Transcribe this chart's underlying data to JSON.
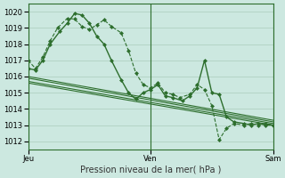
{
  "xlabel": "Pression niveau de la mer( hPa )",
  "bg_color": "#cce8e0",
  "grid_color": "#aaccbb",
  "line_color": "#2d6e2d",
  "ylim": [
    1011.5,
    1020.5
  ],
  "yticks": [
    1012,
    1013,
    1014,
    1015,
    1016,
    1017,
    1018,
    1019,
    1020
  ],
  "xtick_labels": [
    "Jeu",
    "Ven",
    "Sam"
  ],
  "xtick_positions": [
    0,
    0.5,
    1.0
  ],
  "series": [
    {
      "x": [
        0.0,
        0.03,
        0.06,
        0.09,
        0.12,
        0.16,
        0.19,
        0.22,
        0.25,
        0.28,
        0.31,
        0.34,
        0.38,
        0.41,
        0.44,
        0.47,
        0.5,
        0.53,
        0.56,
        0.59,
        0.62,
        0.66,
        0.69,
        0.72,
        0.75,
        0.78,
        0.81,
        0.84,
        0.88,
        0.91,
        0.94,
        0.97,
        1.0
      ],
      "y": [
        1017.0,
        1016.5,
        1017.2,
        1018.2,
        1019.0,
        1019.6,
        1019.55,
        1019.1,
        1018.9,
        1019.2,
        1019.5,
        1019.1,
        1018.7,
        1017.6,
        1016.2,
        1015.5,
        1015.3,
        1015.6,
        1015.0,
        1014.9,
        1014.7,
        1014.9,
        1015.5,
        1015.2,
        1014.2,
        1012.1,
        1012.8,
        1013.1,
        1013.0,
        1013.1,
        1013.0,
        1013.1,
        1013.0
      ],
      "style": "dotted_marker",
      "linewidth": 0.8,
      "markersize": 2.5
    },
    {
      "x": [
        0.0,
        0.03,
        0.06,
        0.09,
        0.13,
        0.16,
        0.19,
        0.22,
        0.25,
        0.28,
        0.31,
        0.34,
        0.38,
        0.41,
        0.44,
        0.47,
        0.5,
        0.53,
        0.56,
        0.59,
        0.63,
        0.66,
        0.69,
        0.72,
        0.75,
        0.78,
        0.81,
        0.84,
        0.88,
        0.91,
        0.94,
        0.97,
        1.0
      ],
      "y": [
        1016.5,
        1016.4,
        1017.0,
        1018.0,
        1018.8,
        1019.3,
        1019.9,
        1019.8,
        1019.3,
        1018.5,
        1018.0,
        1017.0,
        1015.8,
        1015.0,
        1014.6,
        1015.0,
        1015.2,
        1015.5,
        1014.8,
        1014.7,
        1014.5,
        1014.8,
        1015.3,
        1017.0,
        1015.0,
        1014.9,
        1013.5,
        1013.2,
        1013.1,
        1013.0,
        1013.1,
        1013.0,
        1013.0
      ],
      "style": "solid_marker",
      "linewidth": 1.0,
      "markersize": 2.5
    },
    {
      "x": [
        0.0,
        1.0
      ],
      "y": [
        1016.0,
        1013.3
      ],
      "style": "solid",
      "linewidth": 0.8,
      "markersize": 0
    },
    {
      "x": [
        0.0,
        1.0
      ],
      "y": [
        1015.9,
        1013.2
      ],
      "style": "solid",
      "linewidth": 0.8,
      "markersize": 0
    },
    {
      "x": [
        0.0,
        1.0
      ],
      "y": [
        1015.7,
        1013.1
      ],
      "style": "solid",
      "linewidth": 0.8,
      "markersize": 0
    },
    {
      "x": [
        0.0,
        1.0
      ],
      "y": [
        1015.6,
        1013.0
      ],
      "style": "solid",
      "linewidth": 0.8,
      "markersize": 0
    }
  ],
  "vlines": [
    0.0,
    0.5,
    1.0
  ]
}
